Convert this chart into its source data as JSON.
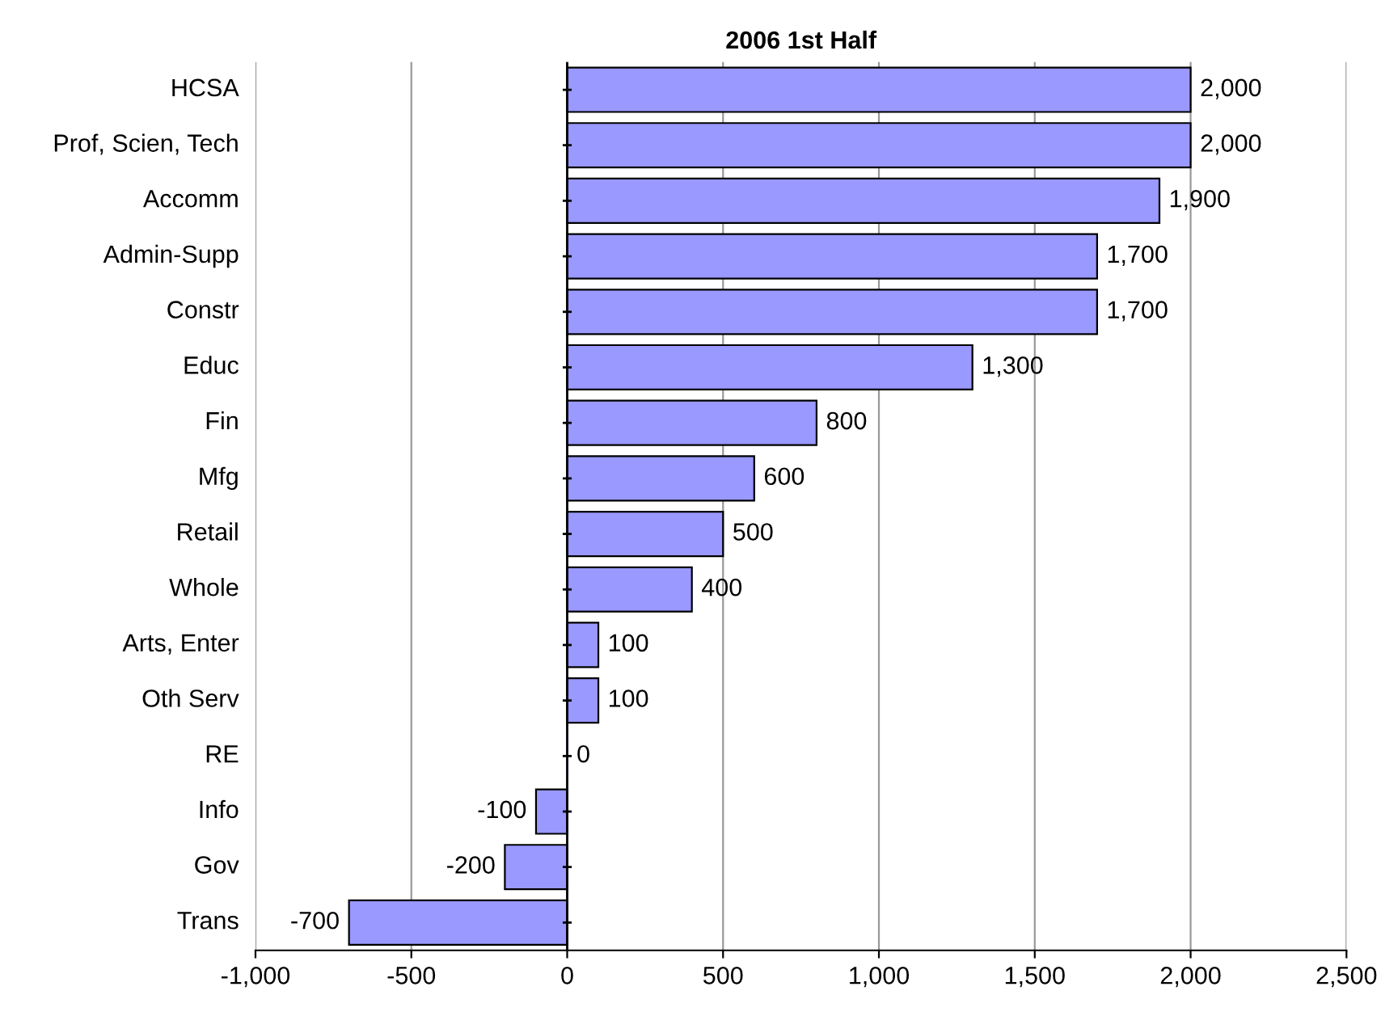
{
  "chart_data": {
    "type": "bar",
    "orientation": "horizontal",
    "title": "2006 1st Half",
    "categories": [
      "HCSA",
      "Prof, Scien, Tech",
      "Accomm",
      "Admin-Supp",
      "Constr",
      "Educ",
      "Fin",
      "Mfg",
      "Retail",
      "Whole",
      "Arts, Enter",
      "Oth Serv",
      "RE",
      "Info",
      "Gov",
      "Trans"
    ],
    "values": [
      2000,
      2000,
      1900,
      1700,
      1700,
      1300,
      800,
      600,
      500,
      400,
      100,
      100,
      0,
      -100,
      -200,
      -700
    ],
    "color": "#9999ff",
    "xlim": [
      -1000,
      2500
    ],
    "xticks": [
      {
        "value": -1000,
        "label": "-1,000"
      },
      {
        "value": -500,
        "label": "-500"
      },
      {
        "value": 0,
        "label": "0"
      },
      {
        "value": 500,
        "label": "500"
      },
      {
        "value": 1000,
        "label": "1,000"
      },
      {
        "value": 1500,
        "label": "1,500"
      },
      {
        "value": 2000,
        "label": "2,000"
      },
      {
        "value": 2500,
        "label": "2,500"
      }
    ],
    "value_labels": [
      "2,000",
      "2,000",
      "1,900",
      "1,700",
      "1,700",
      "1,300",
      "800",
      "600",
      "500",
      "400",
      "100",
      "100",
      "0",
      "-100",
      "-200",
      "-700"
    ],
    "grid": "x",
    "legend": false
  }
}
